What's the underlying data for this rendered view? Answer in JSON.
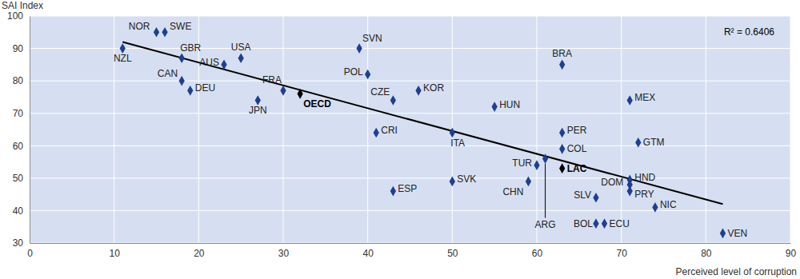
{
  "chart_data": {
    "type": "scatter",
    "xlabel": "Perceived level of corruption",
    "ylabel": "SAI Index",
    "annotation": "R² = 0.6406",
    "labels": [
      "NOR",
      "SWE",
      "NZL",
      "GBR",
      "USA",
      "AUS",
      "CAN",
      "DEU",
      "FRA",
      "JPN",
      "OECD",
      "SVN",
      "POL",
      "KOR",
      "CZE",
      "HUN",
      "CRI",
      "ITA",
      "ESP",
      "SVK",
      "BRA",
      "MEX",
      "PER",
      "COL",
      "GTM",
      "TUR",
      "ARG",
      "LAC",
      "CHN",
      "HND",
      "DOM",
      "SLV",
      "PRY",
      "NIC",
      "BOL",
      "ECU",
      "VEN"
    ],
    "x": [
      15,
      16,
      11,
      18,
      25,
      23,
      18,
      19,
      30,
      27,
      32,
      39,
      40,
      46,
      43,
      55,
      41,
      50,
      43,
      50,
      63,
      71,
      63,
      63,
      72,
      60,
      61,
      63,
      59,
      71,
      71,
      67,
      71,
      74,
      67,
      68,
      82
    ],
    "values": [
      95,
      95,
      90,
      87,
      87,
      85,
      80,
      77,
      77,
      74,
      76,
      90,
      82,
      77,
      74,
      72,
      64,
      64,
      46,
      49,
      85,
      74,
      64,
      59,
      61,
      54,
      56,
      53,
      49,
      49.5,
      48,
      44,
      46,
      41,
      36,
      36,
      33
    ],
    "color": "#1f3f8f",
    "colors": [
      "#1f3f8f",
      "#1f3f8f",
      "#1f3f8f",
      "#1f3f8f",
      "#1f3f8f",
      "#1f3f8f",
      "#1f3f8f",
      "#1f3f8f",
      "#1f3f8f",
      "#1f3f8f",
      "#000000",
      "#1f3f8f",
      "#1f3f8f",
      "#1f3f8f",
      "#1f3f8f",
      "#1f3f8f",
      "#1f3f8f",
      "#1f3f8f",
      "#1f3f8f",
      "#1f3f8f",
      "#1f3f8f",
      "#1f3f8f",
      "#1f3f8f",
      "#1f3f8f",
      "#1f3f8f",
      "#1f3f8f",
      "#1f3f8f",
      "#000000",
      "#1f3f8f",
      "#1f3f8f",
      "#1f3f8f",
      "#1f3f8f",
      "#1f3f8f",
      "#1f3f8f",
      "#1f3f8f",
      "#1f3f8f",
      "#1f3f8f"
    ],
    "marker": "diamond",
    "trend_line": {
      "x": [
        11,
        82
      ],
      "values": [
        92,
        42
      ]
    },
    "xlim": [
      0,
      90
    ],
    "xticks": [
      0,
      10,
      20,
      30,
      40,
      50,
      60,
      70,
      80,
      90
    ],
    "ylim": [
      30,
      100
    ],
    "yticks": [
      30,
      40,
      50,
      60,
      70,
      80,
      90,
      100
    ],
    "grid": true
  }
}
